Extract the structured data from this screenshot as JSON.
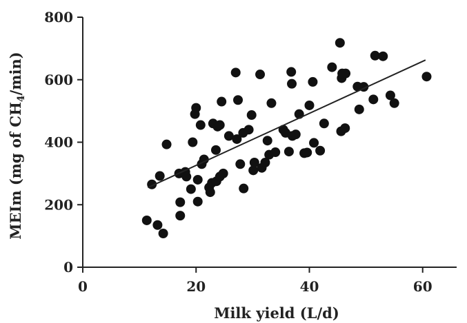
{
  "chart_data": {
    "type": "scatter",
    "xlabel": "Milk yield (L/d)",
    "ylabel_parts": [
      "MEIm (mg of CH",
      "4",
      "/min)"
    ],
    "xlim": [
      0,
      66
    ],
    "ylim": [
      0,
      800
    ],
    "x_ticks": [
      0,
      20,
      40,
      60
    ],
    "y_ticks": [
      0,
      200,
      400,
      600,
      800
    ],
    "grid": false,
    "trendline": {
      "x": [
        11.5,
        60.5
      ],
      "y": [
        255,
        663
      ]
    },
    "points": [
      {
        "x": 11.3,
        "y": 150
      },
      {
        "x": 13.2,
        "y": 135
      },
      {
        "x": 14.2,
        "y": 108
      },
      {
        "x": 12.2,
        "y": 265
      },
      {
        "x": 13.6,
        "y": 292
      },
      {
        "x": 14.8,
        "y": 393
      },
      {
        "x": 17.2,
        "y": 165
      },
      {
        "x": 17.2,
        "y": 208
      },
      {
        "x": 17.0,
        "y": 300
      },
      {
        "x": 18.1,
        "y": 305
      },
      {
        "x": 18.3,
        "y": 290
      },
      {
        "x": 19.1,
        "y": 250
      },
      {
        "x": 19.4,
        "y": 400
      },
      {
        "x": 19.8,
        "y": 490
      },
      {
        "x": 20.0,
        "y": 510
      },
      {
        "x": 20.3,
        "y": 210
      },
      {
        "x": 20.3,
        "y": 280
      },
      {
        "x": 20.8,
        "y": 455
      },
      {
        "x": 21.0,
        "y": 330
      },
      {
        "x": 21.4,
        "y": 345
      },
      {
        "x": 22.3,
        "y": 255
      },
      {
        "x": 22.5,
        "y": 240
      },
      {
        "x": 22.8,
        "y": 270
      },
      {
        "x": 23.0,
        "y": 460
      },
      {
        "x": 23.5,
        "y": 375
      },
      {
        "x": 23.6,
        "y": 275
      },
      {
        "x": 23.8,
        "y": 450
      },
      {
        "x": 24.2,
        "y": 290
      },
      {
        "x": 24.2,
        "y": 455
      },
      {
        "x": 24.5,
        "y": 530
      },
      {
        "x": 24.8,
        "y": 300
      },
      {
        "x": 25.8,
        "y": 420
      },
      {
        "x": 27.0,
        "y": 623
      },
      {
        "x": 27.2,
        "y": 410
      },
      {
        "x": 27.4,
        "y": 535
      },
      {
        "x": 27.8,
        "y": 330
      },
      {
        "x": 28.3,
        "y": 430
      },
      {
        "x": 28.4,
        "y": 252
      },
      {
        "x": 29.3,
        "y": 440
      },
      {
        "x": 29.8,
        "y": 487
      },
      {
        "x": 30.1,
        "y": 310
      },
      {
        "x": 30.3,
        "y": 335
      },
      {
        "x": 31.3,
        "y": 617
      },
      {
        "x": 31.6,
        "y": 318
      },
      {
        "x": 32.2,
        "y": 335
      },
      {
        "x": 32.6,
        "y": 405
      },
      {
        "x": 32.9,
        "y": 360
      },
      {
        "x": 33.3,
        "y": 525
      },
      {
        "x": 34.0,
        "y": 368
      },
      {
        "x": 35.4,
        "y": 440
      },
      {
        "x": 35.8,
        "y": 430
      },
      {
        "x": 36.4,
        "y": 370
      },
      {
        "x": 36.8,
        "y": 625
      },
      {
        "x": 36.9,
        "y": 587
      },
      {
        "x": 37.0,
        "y": 420
      },
      {
        "x": 37.6,
        "y": 425
      },
      {
        "x": 38.2,
        "y": 490
      },
      {
        "x": 39.1,
        "y": 365
      },
      {
        "x": 39.6,
        "y": 367
      },
      {
        "x": 40.0,
        "y": 518
      },
      {
        "x": 40.6,
        "y": 593
      },
      {
        "x": 40.8,
        "y": 398
      },
      {
        "x": 41.9,
        "y": 373
      },
      {
        "x": 42.6,
        "y": 460
      },
      {
        "x": 44.0,
        "y": 640
      },
      {
        "x": 45.4,
        "y": 718
      },
      {
        "x": 45.7,
        "y": 605
      },
      {
        "x": 45.8,
        "y": 620
      },
      {
        "x": 45.6,
        "y": 435
      },
      {
        "x": 46.3,
        "y": 445
      },
      {
        "x": 46.4,
        "y": 620
      },
      {
        "x": 48.5,
        "y": 578
      },
      {
        "x": 48.8,
        "y": 505
      },
      {
        "x": 49.6,
        "y": 577
      },
      {
        "x": 51.3,
        "y": 537
      },
      {
        "x": 51.6,
        "y": 677
      },
      {
        "x": 53.0,
        "y": 675
      },
      {
        "x": 54.3,
        "y": 550
      },
      {
        "x": 55.0,
        "y": 525
      },
      {
        "x": 60.7,
        "y": 610
      }
    ]
  }
}
